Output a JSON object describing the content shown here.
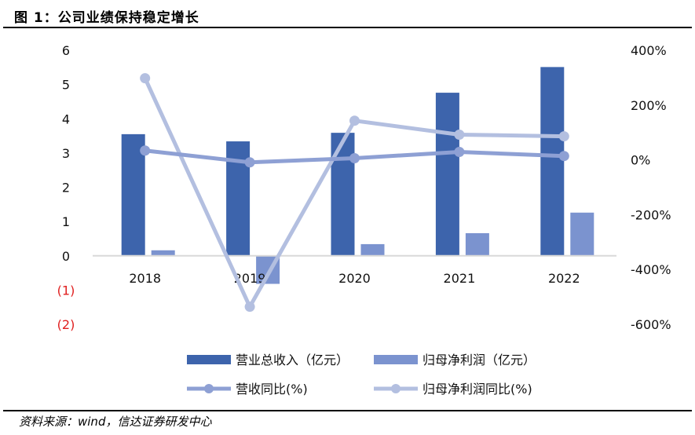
{
  "header": {
    "title": "图 1：公司业绩保持稳定增长"
  },
  "footer": {
    "source": "资料来源：wind，信达证券研发中心"
  },
  "colors": {
    "revenue_bar": "#3d64ac",
    "profit_bar": "#7b93cf",
    "revenue_yoy_line": "#8ea0d4",
    "profit_yoy_line": "#b3bfe0",
    "axis_line": "#d9d9d9",
    "negative_tick": "#e02020"
  },
  "chart_data": {
    "type": "bar+line",
    "title": "图 1：公司业绩保持稳定增长",
    "categories": [
      "2018",
      "2019",
      "2020",
      "2021",
      "2022"
    ],
    "left_axis": {
      "ylim": [
        -2,
        6
      ],
      "ticks": [
        6,
        5,
        4,
        3,
        2,
        1,
        0,
        -1,
        -2
      ],
      "tick_labels": [
        "6",
        "5",
        "4",
        "3",
        "2",
        "1",
        "0",
        "(1)",
        "(2)"
      ]
    },
    "right_axis": {
      "ylim": [
        -600,
        400
      ],
      "ticks": [
        400,
        200,
        0,
        -200,
        -400,
        -600
      ],
      "tick_labels": [
        "400%",
        "200%",
        "0%",
        "-200%",
        "-400%",
        "-600%"
      ]
    },
    "series": [
      {
        "name": "营业总收入（亿元）",
        "type": "bar",
        "axis": "left",
        "values": [
          3.55,
          3.34,
          3.59,
          4.76,
          5.51
        ]
      },
      {
        "name": "归母净利润（亿元）",
        "type": "bar",
        "axis": "left",
        "values": [
          0.16,
          -0.82,
          0.34,
          0.66,
          1.26
        ]
      },
      {
        "name": "营收同比(%)",
        "type": "line",
        "axis": "right",
        "values": [
          34,
          -9,
          6,
          29,
          14
        ]
      },
      {
        "name": "归母净利润同比(%)",
        "type": "line",
        "axis": "right",
        "values": [
          298,
          -536,
          143,
          92,
          86
        ]
      }
    ],
    "legend_position": "bottom",
    "grid": false
  }
}
